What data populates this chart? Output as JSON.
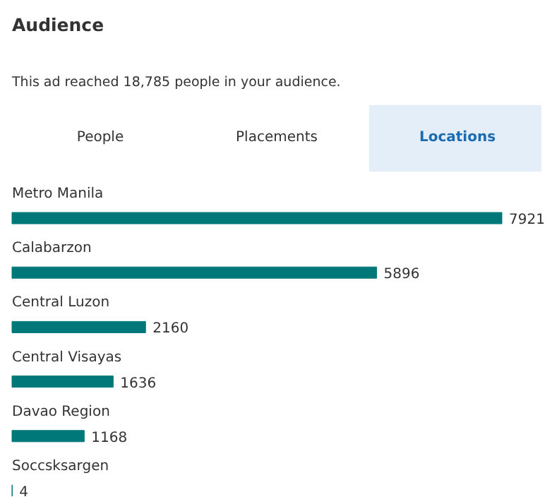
{
  "chart_data": {
    "type": "bar",
    "orientation": "horizontal",
    "title": "Audience",
    "subtitle": "This ad reached 18,785 people in your audience.",
    "annotations": [
      "People",
      "Placements",
      "Locations"
    ],
    "categories": [
      "Metro Manila",
      "Calabarzon",
      "Central Luzon",
      "Central Visayas",
      "Davao Region",
      "Soccsksargen"
    ],
    "values": [
      7921,
      5896,
      2160,
      1636,
      1168,
      4
    ],
    "color": "#00787a",
    "data_labels": true
  }
}
